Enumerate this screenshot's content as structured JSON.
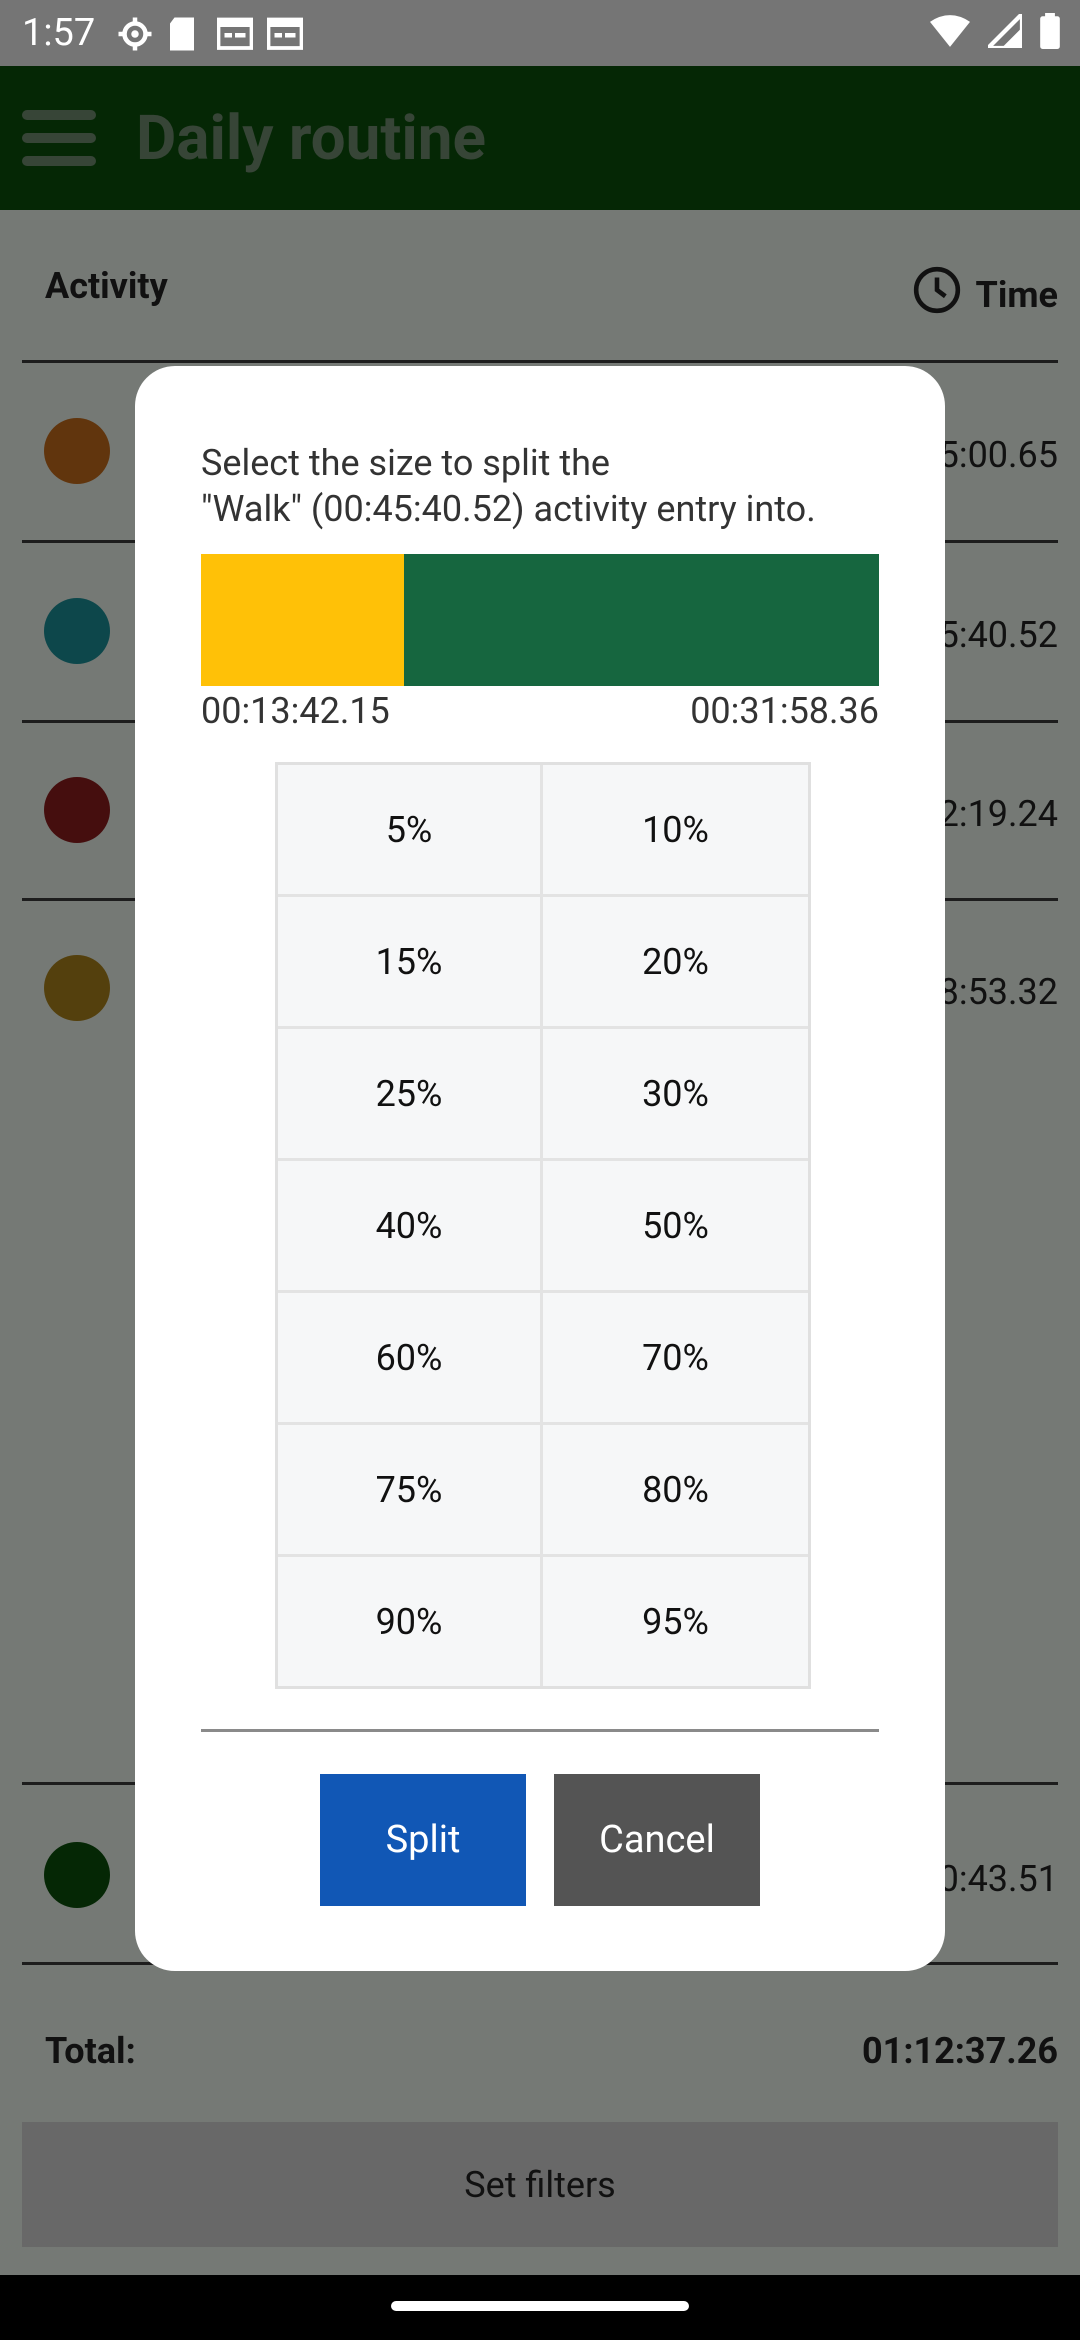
{
  "status_bar": {
    "time": "1:57",
    "left_icons": [
      "settings-icon",
      "sd-card-icon",
      "calendar-icon",
      "calendar-icon"
    ],
    "right_icons": [
      "wifi-icon",
      "signal-icon",
      "battery-icon"
    ]
  },
  "app_bar": {
    "title": "Daily routine",
    "menu_icon": "hamburger-menu-icon"
  },
  "list": {
    "header_activity": "Activity",
    "header_time": "Time",
    "rows": [
      {
        "color": "#c26a1b",
        "time": "5:00.65"
      },
      {
        "color": "#1b8e96",
        "time": "5:40.52"
      },
      {
        "color": "#8a1d1d",
        "time": "2:19.24"
      },
      {
        "color": "#a8801a",
        "time": "8:53.32"
      },
      {
        "color": "#0b4f0b",
        "time": "0:43.51"
      }
    ],
    "total_label": "Total:",
    "total_value": "01:12:37.26",
    "filters_button": "Set filters"
  },
  "dialog": {
    "message_line1": "Select the size to split the",
    "message_line2": "\"Walk\" (00:45:40.52) activity entry into.",
    "split_fraction": 0.3,
    "left_color": "#ffc107",
    "right_color": "#16663f",
    "left_time": "00:13:42.15",
    "right_time": "00:31:58.36",
    "options": [
      "5%",
      "10%",
      "15%",
      "20%",
      "25%",
      "30%",
      "40%",
      "50%",
      "60%",
      "70%",
      "75%",
      "80%",
      "90%",
      "95%"
    ],
    "split_button": "Split",
    "cancel_button": "Cancel"
  }
}
